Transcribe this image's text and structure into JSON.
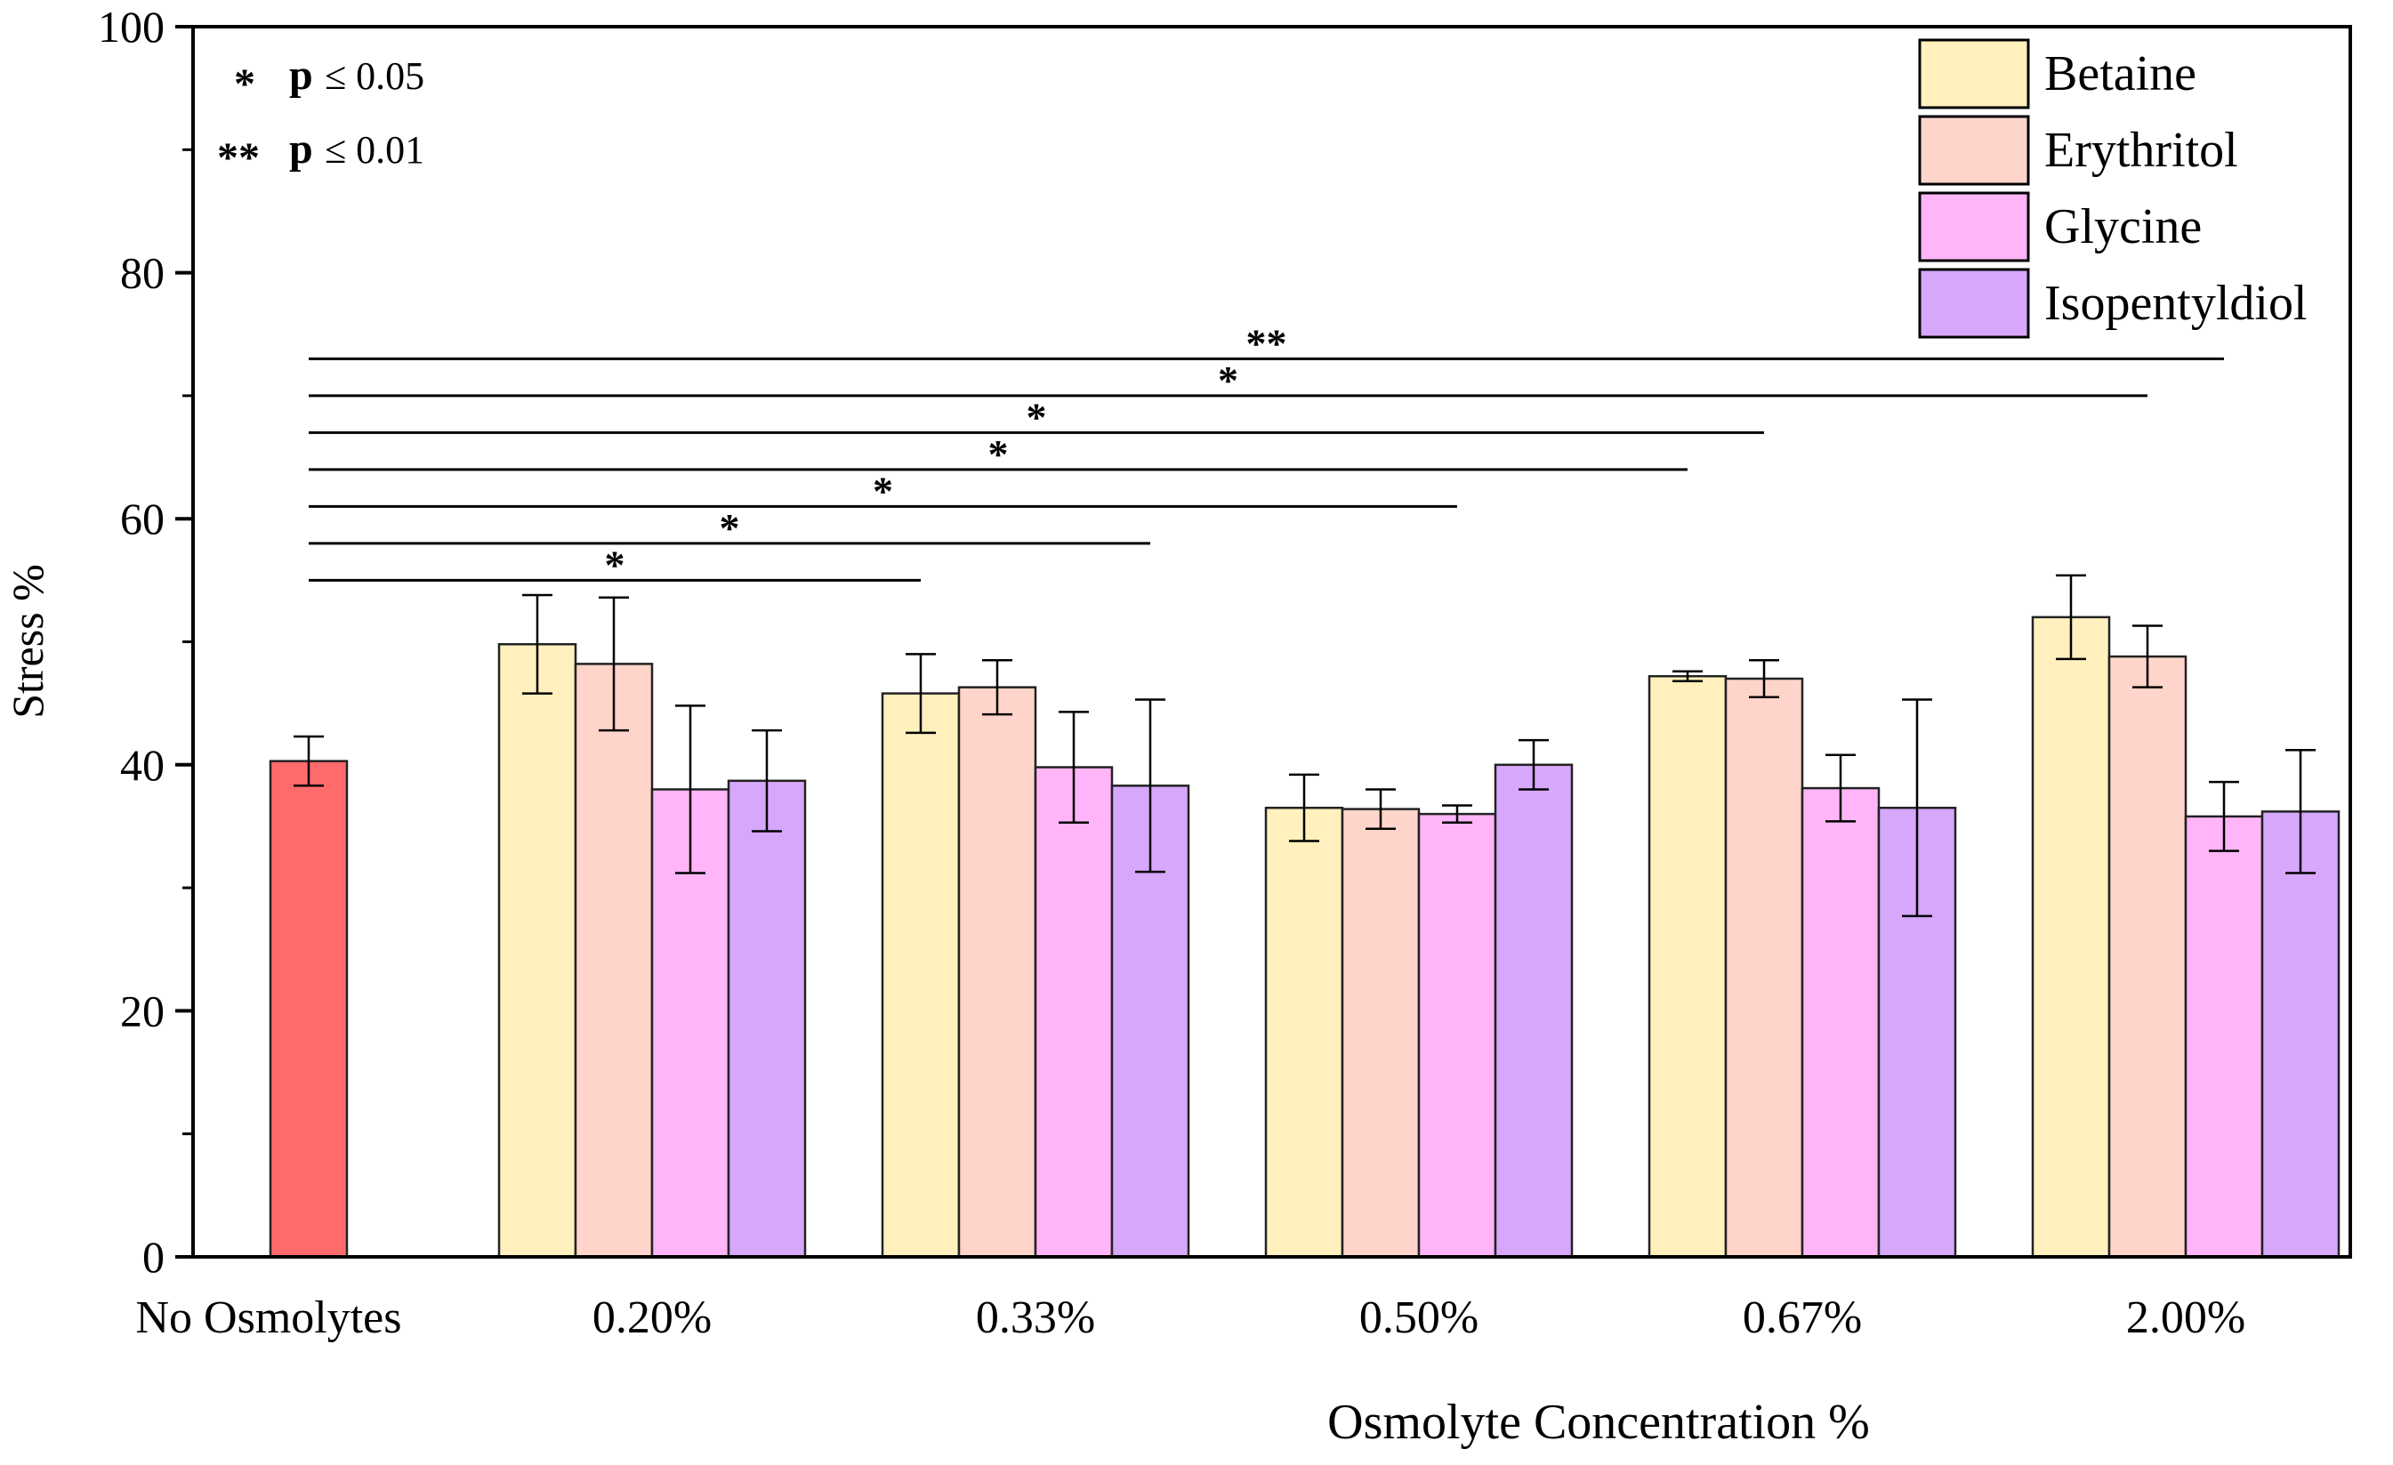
{
  "chart_data": {
    "type": "bar",
    "title": "",
    "xlabel": "Osmolyte Concentration %",
    "ylabel": "Stress %",
    "ylim": [
      0,
      100
    ],
    "yticks": [
      0,
      20,
      40,
      60,
      80,
      100
    ],
    "ytick_labels": [
      "0",
      "20",
      "40",
      "60",
      "80",
      "100"
    ],
    "grid": false,
    "legend_position": "top-right",
    "control": {
      "name": "No Osmolytes",
      "label": "No Osmolytes",
      "value": 40.3,
      "error": 2.0,
      "color": "#ff6b6b"
    },
    "categories": [
      "0.20%",
      "0.33%",
      "0.50%",
      "0.67%",
      "2.00%"
    ],
    "series": [
      {
        "name": "Betaine",
        "color": "#fff0bd",
        "values": [
          49.8,
          45.8,
          36.5,
          47.2,
          52.0
        ],
        "errors": [
          4.0,
          3.2,
          2.7,
          0.4,
          3.4
        ]
      },
      {
        "name": "Erythritol",
        "color": "#ffd5cb",
        "values": [
          48.2,
          46.3,
          36.4,
          47.0,
          48.8
        ],
        "errors": [
          5.4,
          2.2,
          1.6,
          1.5,
          2.5
        ]
      },
      {
        "name": "Glycine",
        "color": "#ffb5f7",
        "values": [
          38.0,
          39.8,
          36.0,
          38.1,
          35.8
        ],
        "errors": [
          6.8,
          4.5,
          0.7,
          2.7,
          2.8
        ]
      },
      {
        "name": "Isopentyldiol",
        "color": "#d7a7fb",
        "values": [
          38.7,
          38.3,
          40.0,
          36.5,
          36.2
        ],
        "errors": [
          4.1,
          7.0,
          2.0,
          8.8,
          5.0
        ]
      }
    ],
    "significance_key": [
      {
        "symbol": "*",
        "p_label": "p",
        "p_text": "≤ 0.05"
      },
      {
        "symbol": "**",
        "p_label": "p",
        "p_text": "≤ 0.01"
      }
    ],
    "significance": [
      {
        "label": "*",
        "y": 55,
        "from": "No Osmolytes",
        "to": "0.33% Betaine"
      },
      {
        "label": "*",
        "y": 58,
        "from": "No Osmolytes",
        "to": "0.33% Isopentyldiol"
      },
      {
        "label": "*",
        "y": 61,
        "from": "No Osmolytes",
        "to": "0.50% Glycine"
      },
      {
        "label": "*",
        "y": 64,
        "from": "No Osmolytes",
        "to": "0.67% Betaine"
      },
      {
        "label": "*",
        "y": 67,
        "from": "No Osmolytes",
        "to": "0.67% Erythritol"
      },
      {
        "label": "*",
        "y": 70,
        "from": "No Osmolytes",
        "to": "2.00% Erythritol"
      },
      {
        "label": "**",
        "y": 73,
        "from": "No Osmolytes",
        "to": "2.00% Glycine"
      }
    ]
  }
}
